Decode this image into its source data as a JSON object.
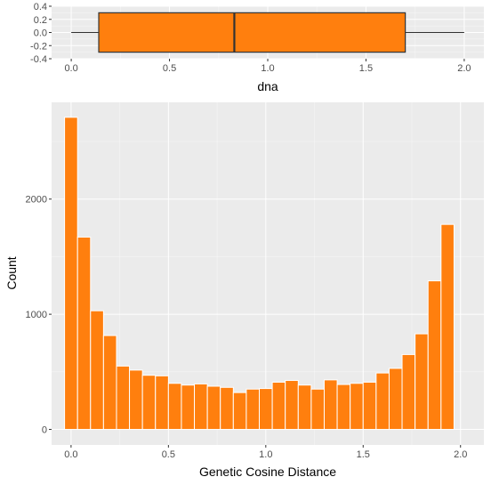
{
  "colors": {
    "panel": "#EBEBEB",
    "grid_major": "#FFFFFF",
    "fill": "#FF7F0E",
    "outline": "#333333",
    "bar_outline": "#FFFFFF"
  },
  "chart_data": [
    {
      "type": "box",
      "xlabel": "dna",
      "xlim": [
        -0.1,
        2.1
      ],
      "ylim": [
        -0.4,
        0.4
      ],
      "x_ticks": [
        0.0,
        0.5,
        1.0,
        1.5,
        2.0
      ],
      "x_tick_labels": [
        "0.0",
        "0.5",
        "1.0",
        "1.5",
        "2.0"
      ],
      "y_ticks": [
        -0.4,
        -0.2,
        0.0,
        0.2,
        0.4
      ],
      "y_tick_labels": [
        "-0.4",
        "-0.2",
        "0.0",
        "0.2",
        "0.4"
      ],
      "box": {
        "min": 0.0,
        "q1": 0.14,
        "median": 0.83,
        "q3": 1.7,
        "max": 2.0
      }
    },
    {
      "type": "bar",
      "xlabel": "Genetic Cosine Distance",
      "ylabel": "Count",
      "xlim": [
        -0.1,
        2.12
      ],
      "ylim": [
        -135,
        2840
      ],
      "x_ticks": [
        0.0,
        0.5,
        1.0,
        1.5,
        2.0
      ],
      "x_tick_labels": [
        "0.0",
        "0.5",
        "1.0",
        "1.5",
        "2.0"
      ],
      "y_ticks": [
        0,
        1000,
        2000
      ],
      "y_tick_labels": [
        "0",
        "1000",
        "2000"
      ],
      "bin_width": 0.0667,
      "bin_centers": [
        0.0,
        0.0667,
        0.1333,
        0.2,
        0.2667,
        0.3333,
        0.4,
        0.4667,
        0.5333,
        0.6,
        0.6667,
        0.7333,
        0.8,
        0.8667,
        0.9333,
        1.0,
        1.0667,
        1.1333,
        1.2,
        1.2667,
        1.3333,
        1.4,
        1.4667,
        1.5333,
        1.6,
        1.6667,
        1.7333,
        1.8,
        1.8667,
        1.9333,
        2.0
      ],
      "values": [
        2710,
        1670,
        1030,
        815,
        550,
        515,
        470,
        465,
        400,
        385,
        395,
        375,
        365,
        320,
        350,
        355,
        410,
        425,
        385,
        350,
        430,
        390,
        400,
        410,
        490,
        530,
        650,
        830,
        1290,
        1780,
        0
      ]
    }
  ]
}
